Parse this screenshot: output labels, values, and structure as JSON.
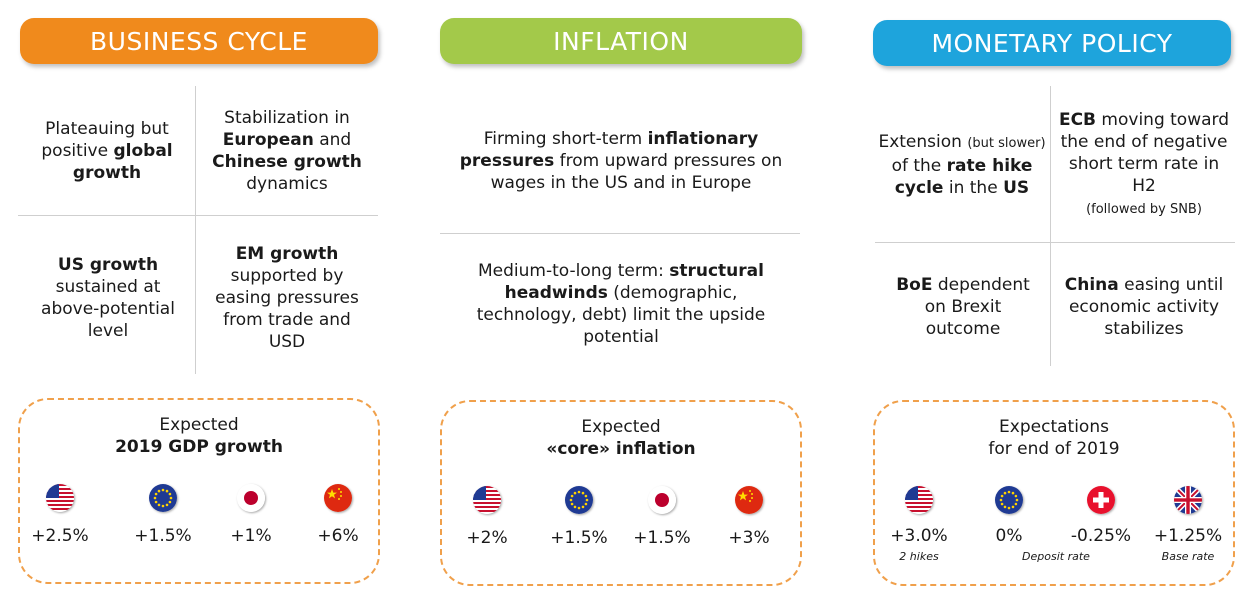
{
  "business_cycle": {
    "header": "BUSINESS CYCLE",
    "color": "#f08a1c",
    "cells": {
      "tl": {
        "pre": "Plateauing but positive ",
        "bold": "global growth",
        "post": ""
      },
      "tr": {
        "pre": "Stabilization in ",
        "bold1": "European",
        "mid": " and ",
        "bold2": "Chinese growth",
        "post": " dynamics"
      },
      "bl": {
        "bold": "US growth",
        "post": " sustained at above-potential level"
      },
      "br": {
        "bold": "EM growth",
        "post": " supported by easing pressures from trade and USD"
      }
    },
    "box": {
      "title1": "Expected",
      "title2": "2019 GDP growth",
      "items": [
        {
          "flag": "us-flag-icon",
          "value": "+2.5%"
        },
        {
          "flag": "eu-flag-icon",
          "value": "+1.5%"
        },
        {
          "flag": "japan-flag-icon",
          "value": "+1%"
        },
        {
          "flag": "china-flag-icon",
          "value": "+6%"
        }
      ]
    }
  },
  "inflation": {
    "header": "INFLATION",
    "color": "#a3c94a",
    "cells": {
      "top": {
        "pre": "Firming short-term ",
        "bold": "inflationary pressures",
        "post": " from upward pressures on wages in the US and in Europe"
      },
      "bottom": {
        "pre": "Medium-to-long term: ",
        "bold": "structural headwinds",
        "post": " (demographic, technology, debt) limit the upside potential"
      }
    },
    "box": {
      "title1": "Expected",
      "title2": "«core» inflation",
      "items": [
        {
          "flag": "us-flag-icon",
          "value": "+2%"
        },
        {
          "flag": "eu-flag-icon",
          "value": "+1.5%"
        },
        {
          "flag": "japan-flag-icon",
          "value": "+1.5%"
        },
        {
          "flag": "china-flag-icon",
          "value": "+3%"
        }
      ]
    }
  },
  "monetary_policy": {
    "header": "MONETARY POLICY",
    "color": "#1ea4dc",
    "cells": {
      "tl": {
        "pre": "Extension ",
        "small": "(but slower)",
        "mid": " of the ",
        "bold1": "rate hike cycle",
        "mid2": " in the ",
        "bold2": "US"
      },
      "tr": {
        "bold": "ECB",
        "post": " moving toward the end of negative short term rate in H2",
        "small": "(followed by SNB)"
      },
      "bl": {
        "bold": "BoE",
        "post": " dependent on Brexit outcome"
      },
      "br": {
        "bold": "China",
        "post": " easing until economic activity stabilizes"
      }
    },
    "box": {
      "title1": "Expectations",
      "title2": "for end of 2019",
      "items": [
        {
          "flag": "us-flag-icon",
          "value": "+3.0%",
          "note": "2 hikes"
        },
        {
          "flag": "eu-flag-icon",
          "value": "0%",
          "note": ""
        },
        {
          "flag": "swiss-flag-icon",
          "value": "-0.25%",
          "note": ""
        },
        {
          "flag": "uk-flag-icon",
          "value": "+1.25%",
          "note": "Base rate"
        }
      ],
      "shared_note": "Deposit rate"
    }
  }
}
